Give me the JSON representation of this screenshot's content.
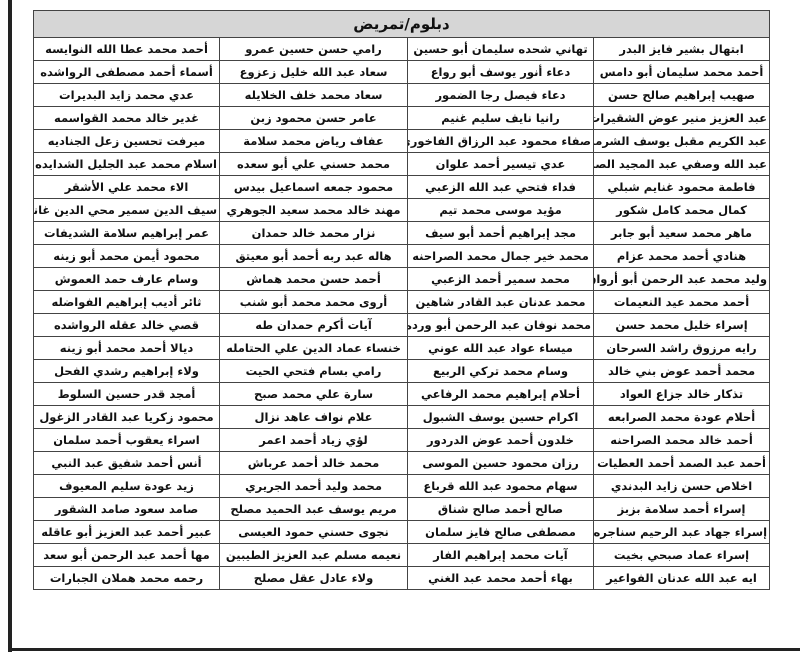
{
  "title": "دبلوم/تمريض",
  "rows": [
    [
      "ابتهال بشير فايز البدر",
      "تهاني شحده سليمان أبو حسين",
      "رامي حسن حسين عمرو",
      "أحمد محمد عطا الله النوايسه"
    ],
    [
      "أحمد محمد سليمان أبو دامس",
      "دعاء أنور يوسف أبو رواع",
      "سعاد عبد الله خليل زعزوع",
      "أسماء أحمد مصطفى الرواشده"
    ],
    [
      "صهيب إبراهيم صالح حسن",
      "دعاء فيصل رجا الضمور",
      "سعاد محمد خلف الخلايله",
      "عدي محمد زايد البديرات"
    ],
    [
      "عبد العزيز منير عوض الشقيرات",
      "رانيا نايف سليم غنيم",
      "عامر حسن محمود زبن",
      "غدير خالد محمد القواسمه"
    ],
    [
      "عبد الكريم مقبل يوسف الشرمان",
      "صفاء محمود عبد الرزاق الفاخوري",
      "عفاف رياض محمد سلامة",
      "ميرفت تحسين زعل الجناديه"
    ],
    [
      "عبد الله وصفي عبد المجيد الصالح",
      "عدي تيسير أحمد علوان",
      "محمد حسني علي أبو سعده",
      "اسلام محمد عبد الجليل الشدايده"
    ],
    [
      "فاطمة محمود غنايم شبلي",
      "فداء فتحي عبد الله الزعبي",
      "محمود جمعه اسماعيل بيدس",
      "الاء محمد علي الأشقر"
    ],
    [
      "كمال محمد كامل شكور",
      "مؤيد موسى محمد تيم",
      "مهند خالد محمد سعيد الجوهري",
      "سيف الدين سمير محي الدين غانم"
    ],
    [
      "ماهر محمد سعيد أبو جابر",
      "مجد إبراهيم أحمد أبو سيف",
      "نزار محمد خالد حمدان",
      "عمر إبراهيم سلامة الشديفات"
    ],
    [
      "هنادي أحمد محمد عزام",
      "محمد خير جمال محمد الصراحنه",
      "هاله عبد ربه أحمد أبو معيتق",
      "محمود أيمن محمد أبو زينه"
    ],
    [
      "وليد محمد عبد الرحمن أبو أرواق",
      "محمد سمير أحمد الزعبي",
      "أحمد حسن محمد هماش",
      "وسام عارف حمد العموش"
    ],
    [
      "أحمد محمد عيد النعيمات",
      "محمد عدنان عبد القادر شاهين",
      "أروى محمد محمد أبو شنب",
      "ثائر أديب إبراهيم الفواضله"
    ],
    [
      "إسراء خليل محمد حسن",
      "محمد نوفان عبد الرحمن أبو ورده",
      "آيات أكرم حمدان طه",
      "قصي خالد عقله الرواشده"
    ],
    [
      "رايه مرزوق راشد السرحان",
      "ميساء عواد عبد الله عوني",
      "خنساء عماد الدين علي الحتامله",
      "ديالا أحمد محمد أبو زينه"
    ],
    [
      "محمد أحمد عوض بني خالد",
      "وسام محمد تركي الربيع",
      "رامي بسام فتحي الحيت",
      "ولاء إبراهيم رشدي الفحل"
    ],
    [
      "تذكار خالد جزاع العواد",
      "أحلام إبراهيم محمد الرفاعي",
      "سارة علي محمد صبح",
      "أمجد قدر حسين السلوط"
    ],
    [
      "أحلام عودة محمد الصرابعه",
      "اكرام حسين يوسف الشبول",
      "علام نواف عاهد نزال",
      "محمود زكريا عبد القادر الزغول"
    ],
    [
      "أحمد خالد محمد الصراحنه",
      "خلدون أحمد عوض الدردور",
      "لؤي زياد أحمد اعمر",
      "اسراء يعقوب أحمد سلمان"
    ],
    [
      "أحمد عبد الصمد أحمد العطيات",
      "رزان محمود حسين الموسى",
      "محمد خالد أحمد عرباش",
      "أنس أحمد شفيق عبد النبي"
    ],
    [
      "اخلاص حسن زايد البدندي",
      "سهام محمود عبد الله قرباع",
      "محمد وليد أحمد الجريري",
      "زيد عودة سليم المعيوف"
    ],
    [
      "إسراء أحمد سلامة بزبز",
      "صالح أحمد صالح شناق",
      "مريم يوسف عبد الحميد مصلح",
      "صامد سعود صامد الشقور"
    ],
    [
      "إسراء جهاد عبد الرحيم سناجره",
      "مصطفى صالح فايز سلمان",
      "نجوى حسني حمود العيسى",
      "عبير أحمد عبد العزيز أبو عاقله"
    ],
    [
      "إسراء عماد صبحي بخيت",
      "آيات محمد إبراهيم الفار",
      "نعيمه مسلم عبد العزيز الطيبين",
      "مها أحمد عبد الرحمن أبو سعد"
    ],
    [
      "ايه عبد الله عدنان الفواعير",
      "بهاء أحمد محمد عبد الغني",
      "ولاء عادل عقل مصلح",
      "رحمه محمد هملان الجبارات"
    ]
  ]
}
